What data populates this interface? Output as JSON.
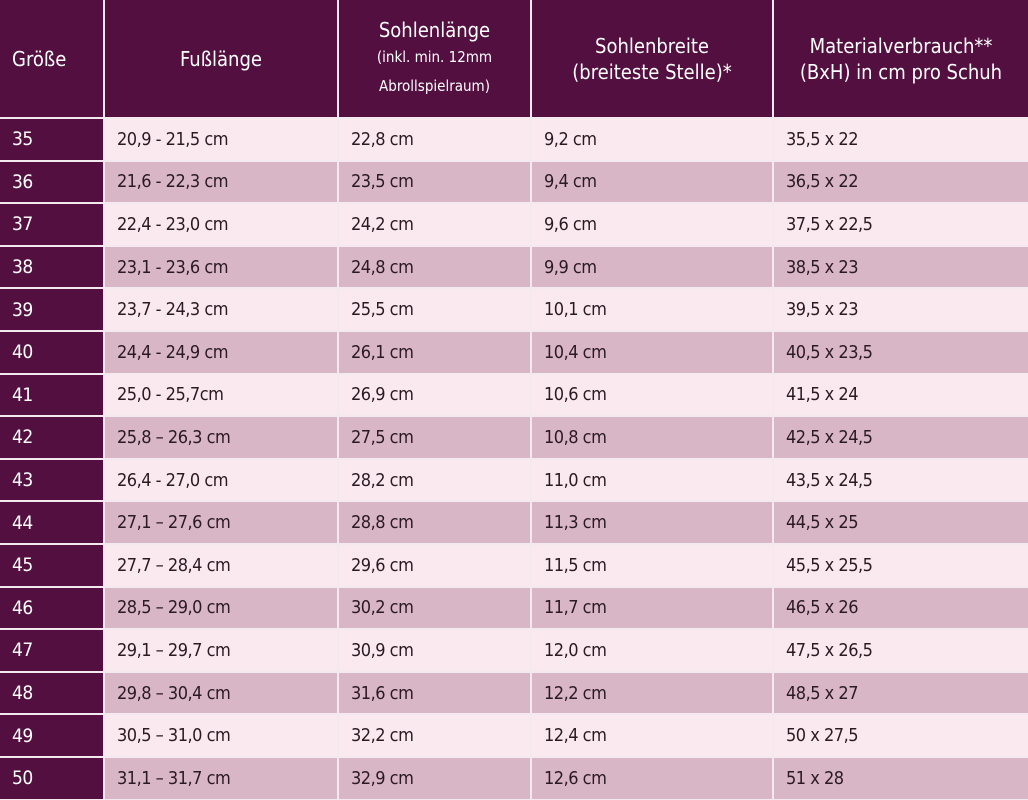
{
  "headers": {
    "size": "Größe",
    "foot_length": "Fußlänge",
    "sole_length": "Sohlenlänge",
    "sole_length_note1": "(inkl. min. 12mm",
    "sole_length_note2": "Abrollspielraum)",
    "sole_width": "Sohlenbreite",
    "sole_width_note": "(breiteste Stelle)*",
    "material": "Materialverbrauch**",
    "material_note": "(BxH) in cm pro Schuh"
  },
  "colors": {
    "header": "#520f40",
    "row_light": "#faeaf0",
    "row_dark": "#d9b6c5"
  },
  "rows": [
    [
      "35",
      "20,9 - 21,5 cm",
      "22,8 cm",
      "9,2 cm",
      "35,5 x 22"
    ],
    [
      "36",
      "21,6 - 22,3 cm",
      "23,5 cm",
      "9,4 cm",
      "36,5 x 22"
    ],
    [
      "37",
      "22,4 - 23,0 cm",
      "24,2 cm",
      "9,6 cm",
      "37,5 x 22,5"
    ],
    [
      "38",
      "23,1 - 23,6 cm",
      "24,8 cm",
      "9,9 cm",
      "38,5 x 23"
    ],
    [
      "39",
      "23,7 - 24,3 cm",
      "25,5 cm",
      "10,1 cm",
      "39,5 x 23"
    ],
    [
      "40",
      "24,4 - 24,9 cm",
      "26,1 cm",
      "10,4 cm",
      "40,5 x 23,5"
    ],
    [
      "41",
      "25,0 - 25,7cm",
      "26,9 cm",
      "10,6 cm",
      "41,5 x 24"
    ],
    [
      "42",
      "25,8 – 26,3 cm",
      "27,5 cm",
      "10,8 cm",
      "42,5 x 24,5"
    ],
    [
      "43",
      "26,4 - 27,0 cm",
      "28,2 cm",
      "11,0 cm",
      "43,5 x 24,5"
    ],
    [
      "44",
      "27,1 – 27,6 cm",
      "28,8 cm",
      "11,3 cm",
      "44,5 x 25"
    ],
    [
      "45",
      "27,7 – 28,4 cm",
      "29,6 cm",
      "11,5 cm",
      "45,5 x 25,5"
    ],
    [
      "46",
      "28,5 – 29,0 cm",
      "30,2 cm",
      "11,7 cm",
      "46,5 x 26"
    ],
    [
      "47",
      "29,1 – 29,7 cm",
      "30,9 cm",
      "12,0 cm",
      "47,5 x 26,5"
    ],
    [
      "48",
      "29,8 – 30,4 cm",
      "31,6 cm",
      "12,2 cm",
      "48,5 x 27"
    ],
    [
      "49",
      "30,5 – 31,0 cm",
      "32,2 cm",
      "12,4 cm",
      "50 x 27,5"
    ],
    [
      "50",
      "31,1 – 31,7 cm",
      "32,9 cm",
      "12,6 cm",
      "51 x 28"
    ]
  ]
}
